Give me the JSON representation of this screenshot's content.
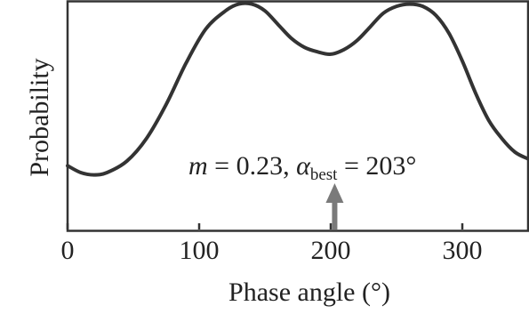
{
  "chart_data": {
    "type": "line",
    "xlabel": "Phase angle (°)",
    "ylabel": "Probability",
    "xlim": [
      0,
      350
    ],
    "ylim": [
      0,
      1
    ],
    "xticks": [
      0,
      100,
      200,
      300
    ],
    "xtick_labels": [
      "0",
      "100",
      "200",
      "300"
    ],
    "yticks_shown": false,
    "grid": false,
    "series": [
      {
        "x": [
          0,
          10,
          20,
          30,
          45,
          60,
          75,
          90,
          105,
          120,
          130,
          140,
          150,
          160,
          170,
          180,
          190,
          200,
          210,
          220,
          230,
          240,
          250,
          260,
          270,
          280,
          290,
          300,
          310,
          320,
          330,
          340,
          350
        ],
        "values": [
          0.28,
          0.25,
          0.24,
          0.25,
          0.3,
          0.4,
          0.55,
          0.73,
          0.88,
          0.96,
          0.99,
          0.99,
          0.96,
          0.9,
          0.84,
          0.8,
          0.78,
          0.77,
          0.79,
          0.83,
          0.89,
          0.95,
          0.98,
          0.99,
          0.98,
          0.94,
          0.86,
          0.74,
          0.6,
          0.48,
          0.4,
          0.34,
          0.31
        ]
      }
    ],
    "annotation": {
      "m_symbol": "m",
      "m_text": " = 0.23, ",
      "alpha_symbol": "α",
      "alpha_sub": "best",
      "alpha_text": " = 203°",
      "arrow_x": 203
    }
  }
}
